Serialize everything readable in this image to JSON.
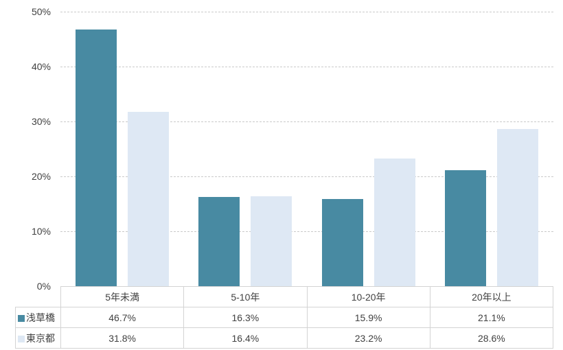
{
  "chart_data": {
    "type": "bar",
    "title": "",
    "xlabel": "",
    "ylabel": "",
    "categories": [
      "5年未満",
      "5-10年",
      "10-20年",
      "20年以上"
    ],
    "series": [
      {
        "name": "浅草橋",
        "color": "#488AA2",
        "values": [
          46.7,
          16.3,
          15.9,
          21.1
        ]
      },
      {
        "name": "東京都",
        "color": "#DEE8F4",
        "values": [
          31.8,
          16.4,
          23.2,
          28.6
        ]
      }
    ],
    "ylim": [
      0,
      50
    ],
    "ytick_step": 10,
    "yticks": [
      "50%",
      "40%",
      "30%",
      "20%",
      "10%",
      "0%"
    ],
    "grid": "horizontal-dashed",
    "legend_position": "data-table-left"
  },
  "table": {
    "display_rows": [
      [
        "46.7%",
        "16.3%",
        "15.9%",
        "21.1%"
      ],
      [
        "31.8%",
        "16.4%",
        "23.2%",
        "28.6%"
      ]
    ]
  },
  "colors": {
    "series_asakusabashi": "#488AA2",
    "series_tokyo": "#DEE8F4",
    "gridline": "#C9C9C9",
    "table_border": "#D3D3D3",
    "text": "#404040",
    "background": "#FFFFFF"
  }
}
